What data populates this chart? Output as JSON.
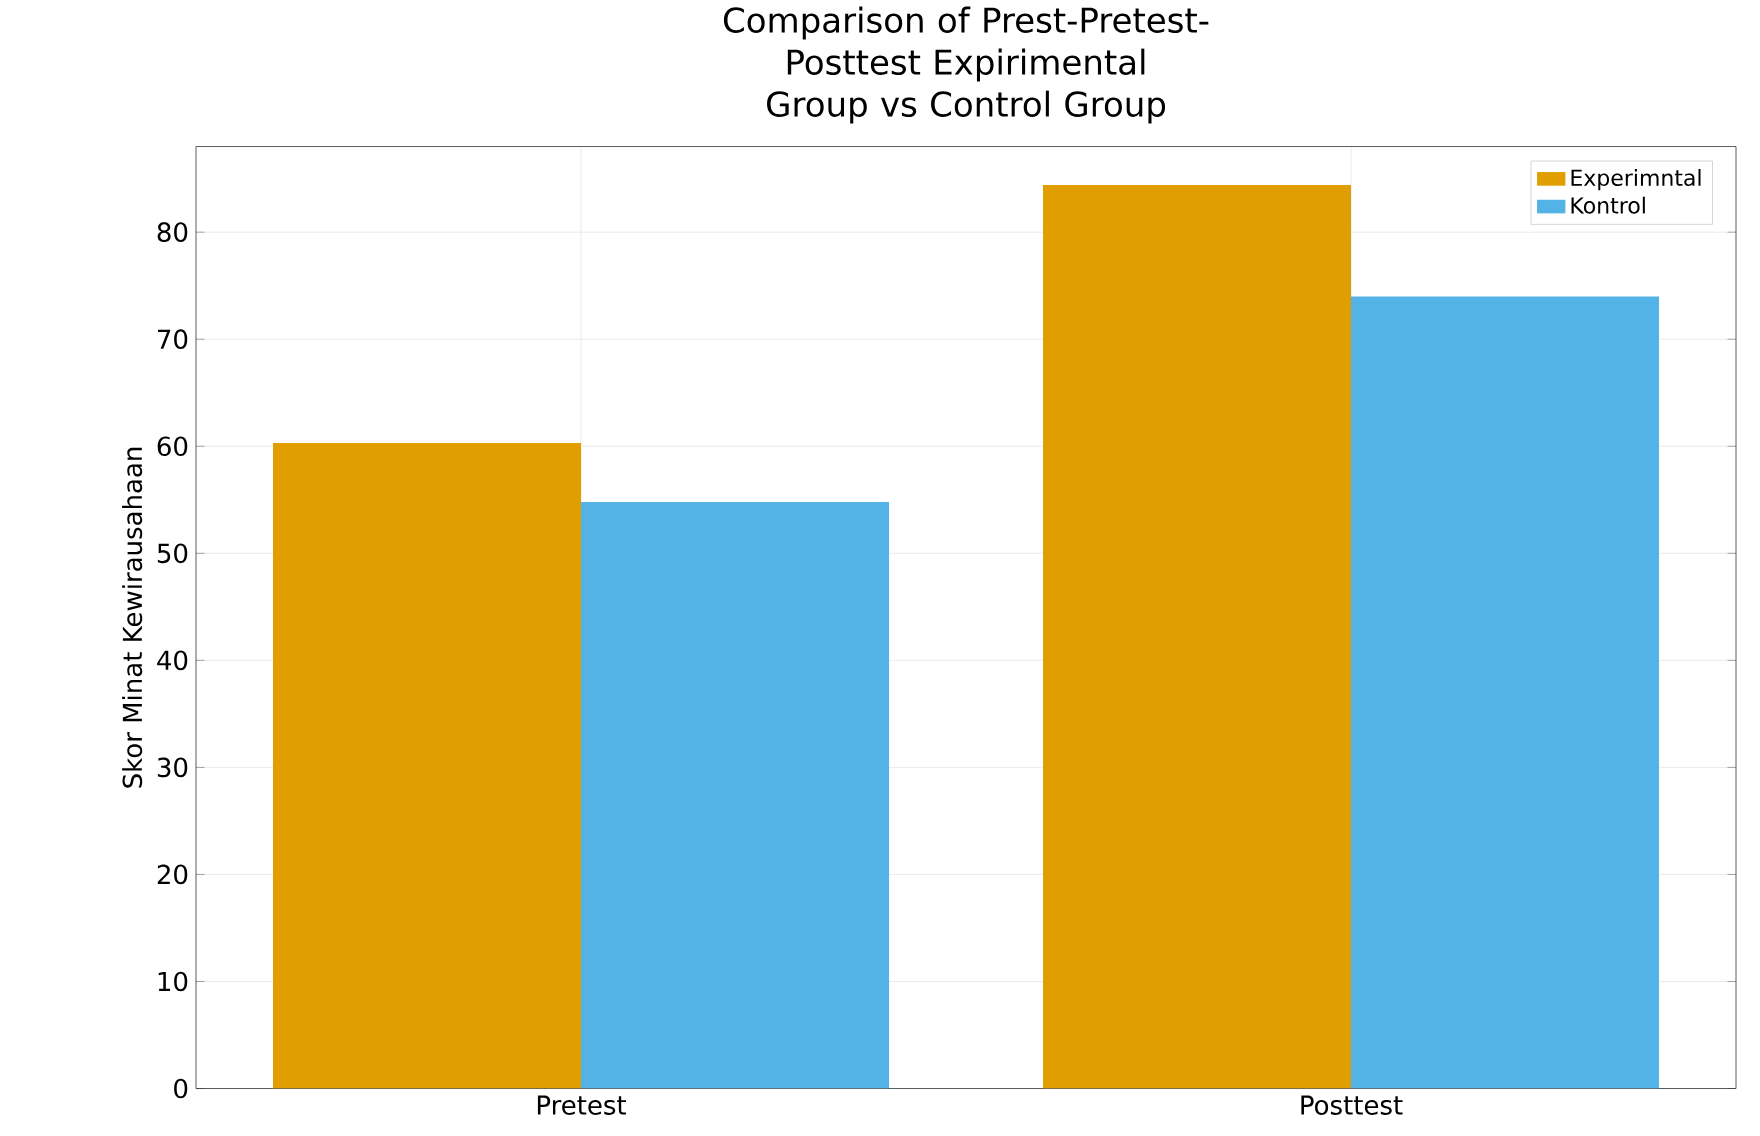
{
  "chart_data": {
    "type": "bar",
    "title": "Comparison of Prest-Pretest-Posttest Expirimental Group vs Control Group",
    "ylabel": "Skor Minat Kewirausahaan",
    "categories": [
      "Pretest",
      "Posttest"
    ],
    "series": [
      {
        "name": "Experimntal",
        "color": "#e09e00",
        "values": [
          60.3,
          84.4
        ]
      },
      {
        "name": "Kontrol",
        "color": "#53b2e6",
        "values": [
          54.8,
          74.0
        ]
      }
    ],
    "ylim": [
      0,
      88
    ],
    "yticks": [
      0,
      10,
      20,
      30,
      40,
      50,
      60,
      70,
      80
    ],
    "grid": true,
    "legend": "top right"
  }
}
